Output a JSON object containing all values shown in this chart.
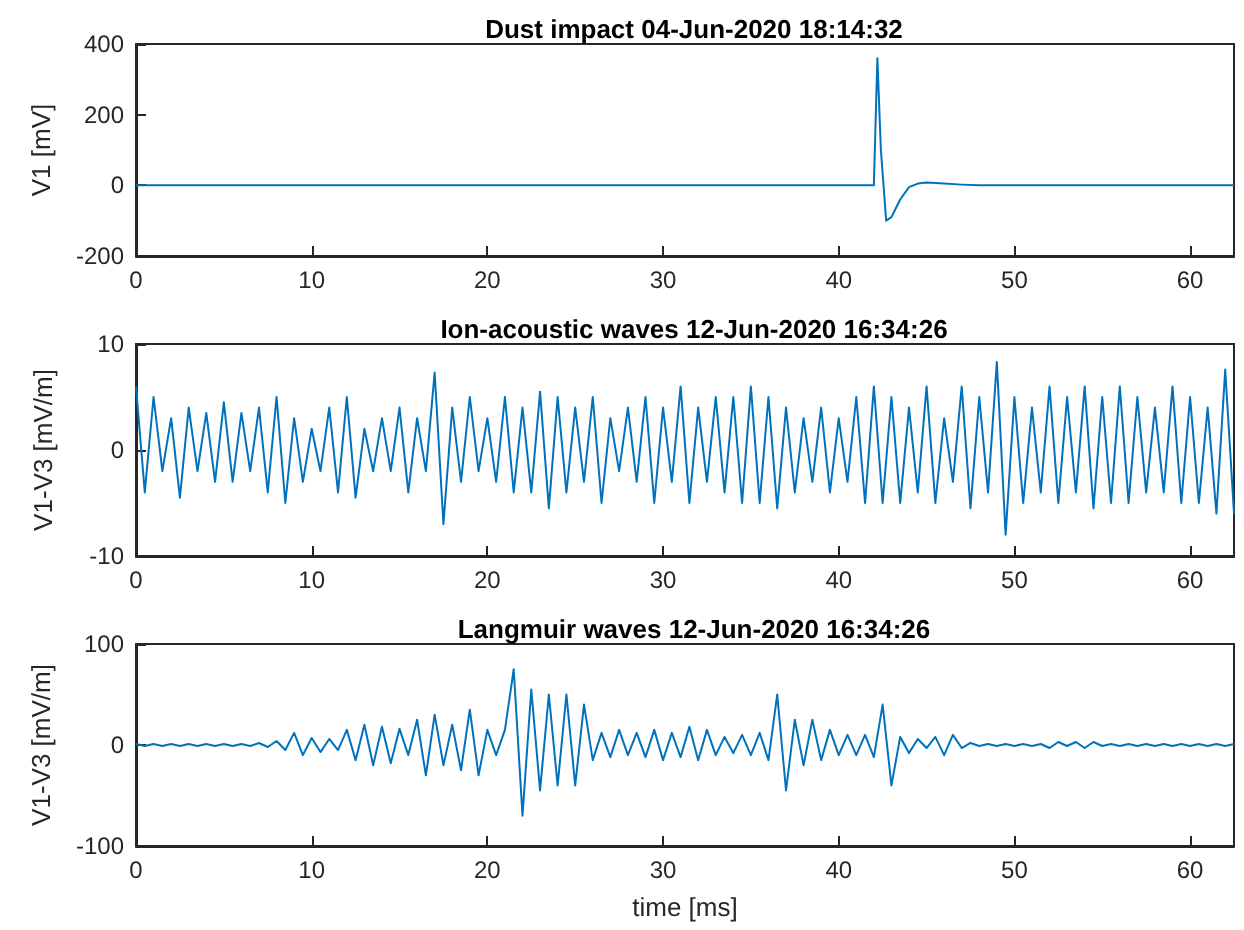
{
  "chart_data": [
    {
      "type": "line",
      "title": "Dust impact 04-Jun-2020 18:14:32",
      "ylabel": "V1 [mV]",
      "xlim": [
        0,
        62.5
      ],
      "xticks": [
        0,
        10,
        20,
        30,
        40,
        50,
        60
      ],
      "ylim": [
        -200,
        400
      ],
      "yticks": [
        -200,
        0,
        200,
        400
      ],
      "series": [
        {
          "color": "#0072bd",
          "x": [
            0,
            5,
            10,
            15,
            20,
            25,
            30,
            35,
            40,
            42,
            42.2,
            42.4,
            42.7,
            43,
            43.5,
            44,
            44.5,
            45,
            46,
            47,
            48,
            50,
            55,
            60,
            62.5
          ],
          "values": [
            0,
            0,
            0,
            0,
            0,
            0,
            0,
            0,
            0,
            0,
            360,
            100,
            -100,
            -90,
            -40,
            -5,
            5,
            8,
            5,
            2,
            0,
            0,
            0,
            0,
            0
          ]
        }
      ]
    },
    {
      "type": "line",
      "title": "Ion-acoustic waves 12-Jun-2020 16:34:26",
      "ylabel": "V1-V3 [mV/m]",
      "xlim": [
        0,
        62.5
      ],
      "xticks": [
        0,
        10,
        20,
        30,
        40,
        50,
        60
      ],
      "ylim": [
        -10,
        10
      ],
      "yticks": [
        -10,
        0,
        10
      ],
      "series": [
        {
          "color": "#0072bd",
          "x": [
            0,
            0.5,
            1,
            1.5,
            2,
            2.5,
            3,
            3.5,
            4,
            4.5,
            5,
            5.5,
            6,
            6.5,
            7,
            7.5,
            8,
            8.5,
            9,
            9.5,
            10,
            10.5,
            11,
            11.5,
            12,
            12.5,
            13,
            13.5,
            14,
            14.5,
            15,
            15.5,
            16,
            16.5,
            17,
            17.5,
            18,
            18.5,
            19,
            19.5,
            20,
            20.5,
            21,
            21.5,
            22,
            22.5,
            23,
            23.5,
            24,
            24.5,
            25,
            25.5,
            26,
            26.5,
            27,
            27.5,
            28,
            28.5,
            29,
            29.5,
            30,
            30.5,
            31,
            31.5,
            32,
            32.5,
            33,
            33.5,
            34,
            34.5,
            35,
            35.5,
            36,
            36.5,
            37,
            37.5,
            38,
            38.5,
            39,
            39.5,
            40,
            40.5,
            41,
            41.5,
            42,
            42.5,
            43,
            43.5,
            44,
            44.5,
            45,
            45.5,
            46,
            46.5,
            47,
            47.5,
            48,
            48.5,
            49,
            49.5,
            50,
            50.5,
            51,
            51.5,
            52,
            52.5,
            53,
            53.5,
            54,
            54.5,
            55,
            55.5,
            56,
            56.5,
            57,
            57.5,
            58,
            58.5,
            59,
            59.5,
            60,
            60.5,
            61,
            61.5,
            62,
            62.5
          ],
          "values": [
            6,
            -4,
            5,
            -2,
            3,
            -4.5,
            4,
            -2,
            3.5,
            -3,
            4.5,
            -3,
            3.5,
            -2,
            4,
            -4,
            5,
            -5,
            3,
            -3,
            2,
            -2,
            4,
            -4,
            5,
            -4.5,
            2,
            -2,
            3,
            -2,
            4,
            -4,
            3,
            -2,
            7.3,
            -7,
            4,
            -3,
            5,
            -2,
            3,
            -3,
            5,
            -4,
            4,
            -4,
            5.5,
            -5.5,
            5,
            -4,
            4,
            -3,
            5,
            -5,
            3,
            -2,
            4,
            -3,
            5,
            -5,
            4,
            -3,
            6,
            -5,
            4,
            -3,
            5,
            -4,
            5,
            -5,
            6,
            -5,
            5,
            -5.5,
            4,
            -4,
            3,
            -3,
            4,
            -4,
            3,
            -3,
            5,
            -5,
            6,
            -5,
            5,
            -5,
            4,
            -4,
            6,
            -5,
            3,
            -3,
            6,
            -5.5,
            5,
            -4,
            8.3,
            -8,
            5,
            -5,
            4,
            -4,
            6,
            -5,
            5,
            -4,
            6,
            -5.5,
            5,
            -5,
            6,
            -5,
            5,
            -4,
            4,
            -4,
            6,
            -5,
            5,
            -5,
            4,
            -6,
            7.6,
            -6
          ]
        }
      ]
    },
    {
      "type": "line",
      "title": "Langmuir waves 12-Jun-2020 16:34:26",
      "xlabel": "time [ms]",
      "ylabel": "V1-V3 [mV/m]",
      "xlim": [
        0,
        62.5
      ],
      "xticks": [
        0,
        10,
        20,
        30,
        40,
        50,
        60
      ],
      "ylim": [
        -100,
        100
      ],
      "yticks": [
        -100,
        0,
        100
      ],
      "series": [
        {
          "color": "#0072bd",
          "x": [
            0,
            0.5,
            1,
            1.5,
            2,
            2.5,
            3,
            3.5,
            4,
            4.5,
            5,
            5.5,
            6,
            6.5,
            7,
            7.5,
            8,
            8.5,
            9,
            9.5,
            10,
            10.5,
            11,
            11.5,
            12,
            12.5,
            13,
            13.5,
            14,
            14.5,
            15,
            15.5,
            16,
            16.5,
            17,
            17.5,
            18,
            18.5,
            19,
            19.5,
            20,
            20.5,
            21,
            21.5,
            22,
            22.5,
            23,
            23.5,
            24,
            24.5,
            25,
            25.5,
            26,
            26.5,
            27,
            27.5,
            28,
            28.5,
            29,
            29.5,
            30,
            30.5,
            31,
            31.5,
            32,
            32.5,
            33,
            33.5,
            34,
            34.5,
            35,
            35.5,
            36,
            36.5,
            37,
            37.5,
            38,
            38.5,
            39,
            39.5,
            40,
            40.5,
            41,
            41.5,
            42,
            42.5,
            43,
            43.5,
            44,
            44.5,
            45,
            45.5,
            46,
            46.5,
            47,
            47.5,
            48,
            48.5,
            49,
            49.5,
            50,
            50.5,
            51,
            51.5,
            52,
            52.5,
            53,
            53.5,
            54,
            54.5,
            55,
            55.5,
            56,
            56.5,
            57,
            57.5,
            58,
            58.5,
            59,
            59.5,
            60,
            60.5,
            61,
            61.5,
            62,
            62.5
          ],
          "values": [
            1,
            -1,
            1,
            -1,
            1,
            -1,
            1,
            -1,
            1,
            -1,
            1,
            -1,
            1,
            -1,
            2,
            -2,
            4,
            -5,
            12,
            -10,
            7,
            -7,
            6,
            -5,
            15,
            -15,
            20,
            -20,
            18,
            -18,
            16,
            -10,
            25,
            -30,
            30,
            -20,
            20,
            -25,
            35,
            -30,
            15,
            -10,
            15,
            75,
            -70,
            55,
            -45,
            50,
            -40,
            50,
            -40,
            40,
            -15,
            12,
            -12,
            15,
            -10,
            12,
            -12,
            15,
            -15,
            12,
            -12,
            18,
            -15,
            15,
            -10,
            8,
            -8,
            10,
            -10,
            12,
            -15,
            50,
            -45,
            25,
            -20,
            25,
            -15,
            15,
            -10,
            10,
            -10,
            10,
            -12,
            40,
            -40,
            8,
            -8,
            6,
            -3,
            8,
            -10,
            10,
            -3,
            2,
            -1,
            1,
            -1,
            1,
            -1,
            1,
            -1,
            1,
            -3,
            3,
            -1,
            3,
            -3,
            3,
            -1,
            1,
            -1,
            1,
            -1,
            1,
            -1,
            1,
            -1,
            1,
            -1,
            1,
            -1,
            1,
            -1,
            1
          ]
        }
      ]
    }
  ]
}
